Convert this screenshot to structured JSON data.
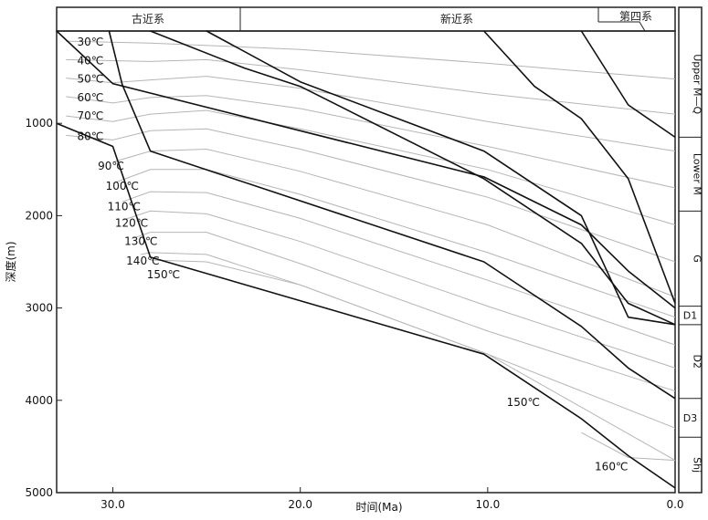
{
  "chart_data": {
    "type": "line",
    "title": "",
    "xlabel": "时间(Ma)",
    "ylabel": "深度(m)",
    "xlim": [
      33.0,
      0.0
    ],
    "ylim": [
      5000,
      0
    ],
    "x_ticks": [
      {
        "value": 30,
        "label": "30.0"
      },
      {
        "value": 20,
        "label": "20.0"
      },
      {
        "value": 10,
        "label": "10.0"
      },
      {
        "value": 0,
        "label": "0.0"
      }
    ],
    "y_ticks": [
      {
        "value": 1000,
        "label": "1000"
      },
      {
        "value": 2000,
        "label": "2000"
      },
      {
        "value": 3000,
        "label": "3000"
      },
      {
        "value": 4000,
        "label": "4000"
      },
      {
        "value": 5000,
        "label": "5000"
      }
    ],
    "periods": [
      {
        "label": "古近系",
        "start": 33.0,
        "end": 23.0
      },
      {
        "label": "新近系",
        "start": 23.0,
        "end": 0.0
      },
      {
        "label": "第四系",
        "start": 2.6,
        "end": 0.0
      }
    ],
    "strat_units": [
      {
        "label": "Upper M—Q",
        "top": 0,
        "bottom": 1150
      },
      {
        "label": "Lower M",
        "top": 1150,
        "bottom": 1950
      },
      {
        "label": "G",
        "top": 1950,
        "bottom": 2980
      },
      {
        "label": "D1",
        "top": 2980,
        "bottom": 3180
      },
      {
        "label": "D2",
        "top": 3180,
        "bottom": 3980
      },
      {
        "label": "D3",
        "top": 3980,
        "bottom": 4400
      },
      {
        "label": "Shj",
        "top": 4400,
        "bottom": 5000
      }
    ],
    "burial_curves": [
      {
        "x": [
          30.3,
          30.3
        ],
        "y": [
          0,
          0
        ]
      },
      {
        "x": [
          33.0,
          30.0,
          10.2,
          5.0,
          2.5,
          0.0
        ],
        "y": [
          0,
          570,
          1580,
          2100,
          2600,
          3000
        ]
      },
      {
        "x": [
          30.2,
          29.5,
          28.0,
          10.2,
          5.0,
          2.5,
          0.0
        ],
        "y": [
          0,
          580,
          1300,
          2500,
          3200,
          3650,
          3980
        ]
      },
      {
        "x": [
          33.0,
          30.0,
          28.0,
          10.2,
          5.0,
          2.5,
          0.0
        ],
        "y": [
          1000,
          1250,
          2450,
          3500,
          4200,
          4600,
          4950
        ]
      },
      {
        "x": [
          28.0,
          23.0,
          20.0,
          10.2,
          5.0,
          2.5,
          0.0
        ],
        "y": [
          0,
          400,
          600,
          1600,
          2300,
          2950,
          3180
        ]
      },
      {
        "x": [
          25.0,
          20.0,
          10.2,
          5.0,
          2.5,
          0.0
        ],
        "y": [
          0,
          550,
          1300,
          2000,
          3100,
          3180
        ]
      },
      {
        "x": [
          10.2,
          7.5,
          5.0,
          2.5,
          0.0
        ],
        "y": [
          0,
          600,
          950,
          1600,
          2950
        ]
      },
      {
        "x": [
          5.0,
          2.5,
          0.0
        ],
        "y": [
          0,
          800,
          1150
        ]
      }
    ],
    "isotherms": [
      {
        "label": "30℃",
        "x": [
          32.5,
          28.0,
          20.0,
          10.0,
          0.0
        ],
        "y": [
          110,
          130,
          200,
          350,
          520
        ]
      },
      {
        "label": "40℃",
        "x": [
          32.5,
          28.0,
          25.0,
          20.0,
          10.0,
          0.0
        ],
        "y": [
          310,
          330,
          310,
          420,
          680,
          900
        ]
      },
      {
        "label": "50℃",
        "x": [
          32.5,
          30.0,
          28.0,
          25.0,
          20.0,
          10.0,
          0.0
        ],
        "y": [
          510,
          560,
          530,
          490,
          620,
          980,
          1300
        ]
      },
      {
        "label": "60℃",
        "x": [
          32.5,
          30.0,
          28.0,
          25.0,
          20.0,
          10.0,
          0.0
        ],
        "y": [
          710,
          780,
          720,
          700,
          840,
          1250,
          1700
        ]
      },
      {
        "label": "70℃",
        "x": [
          32.5,
          30.0,
          28.0,
          25.0,
          20.0,
          10.0,
          0.0
        ],
        "y": [
          920,
          980,
          900,
          860,
          1060,
          1500,
          2100
        ]
      },
      {
        "label": "80℃",
        "x": [
          32.5,
          30.0,
          28.0,
          25.0,
          20.0,
          10.0,
          0.0
        ],
        "y": [
          1130,
          1180,
          1080,
          1060,
          1280,
          1800,
          2500
        ]
      },
      {
        "label": "90℃",
        "x": [
          30.0,
          28.0,
          25.0,
          20.0,
          10.0,
          0.0
        ],
        "y": [
          1420,
          1300,
          1280,
          1520,
          2100,
          2880
        ]
      },
      {
        "label": "100℃",
        "x": [
          30.0,
          28.0,
          25.0,
          20.0,
          10.0,
          0.0
        ],
        "y": [
          1650,
          1500,
          1500,
          1770,
          2400,
          3100
        ]
      },
      {
        "label": "110℃",
        "x": [
          29.5,
          28.0,
          25.0,
          20.0,
          10.0,
          0.0
        ],
        "y": [
          1850,
          1740,
          1750,
          2030,
          2700,
          3400
        ]
      },
      {
        "label": "120℃",
        "x": [
          29.5,
          28.0,
          25.0,
          20.0,
          10.0,
          0.0
        ],
        "y": [
          2050,
          1950,
          1980,
          2280,
          2980,
          3650
        ]
      },
      {
        "label": "130℃",
        "x": [
          29.0,
          28.0,
          25.0,
          20.0,
          10.0,
          0.0
        ],
        "y": [
          2250,
          2180,
          2180,
          2520,
          3250,
          3900
        ]
      },
      {
        "label": "140℃",
        "x": [
          28.5,
          28.0,
          25.0,
          20.0,
          10.0,
          0.0
        ],
        "y": [
          2420,
          2400,
          2420,
          2750,
          3500,
          4300
        ]
      },
      {
        "label": "150℃",
        "x": [
          28.0,
          25.0,
          20.0,
          10.0,
          0.0
        ],
        "y": [
          2480,
          2500,
          2750,
          3500,
          4650
        ]
      },
      {
        "label": "160℃",
        "x": [
          5.0,
          2.5,
          0.0
        ],
        "y": [
          4350,
          4620,
          4650
        ]
      }
    ],
    "isotherm_labels": [
      {
        "text": "30℃",
        "x": 31.2,
        "y": 120
      },
      {
        "text": "40℃",
        "x": 31.2,
        "y": 320
      },
      {
        "text": "50℃",
        "x": 31.2,
        "y": 520
      },
      {
        "text": "60℃",
        "x": 31.2,
        "y": 720
      },
      {
        "text": "70℃",
        "x": 31.2,
        "y": 920
      },
      {
        "text": "80℃",
        "x": 31.2,
        "y": 1140
      },
      {
        "text": "90℃",
        "x": 30.1,
        "y": 1460
      },
      {
        "text": "100℃",
        "x": 29.5,
        "y": 1680
      },
      {
        "text": "110℃",
        "x": 29.4,
        "y": 1900
      },
      {
        "text": "120℃",
        "x": 29.0,
        "y": 2080
      },
      {
        "text": "130℃",
        "x": 28.5,
        "y": 2280
      },
      {
        "text": "140℃",
        "x": 28.4,
        "y": 2490
      },
      {
        "text": "150℃",
        "x": 27.3,
        "y": 2640
      },
      {
        "text": "150℃",
        "x": 8.1,
        "y": 4020
      },
      {
        "text": "160℃",
        "x": 3.4,
        "y": 4720
      }
    ],
    "colors": {
      "burial": "#111111",
      "isotherm": "#b5b5b5",
      "frame": "#222222"
    }
  }
}
